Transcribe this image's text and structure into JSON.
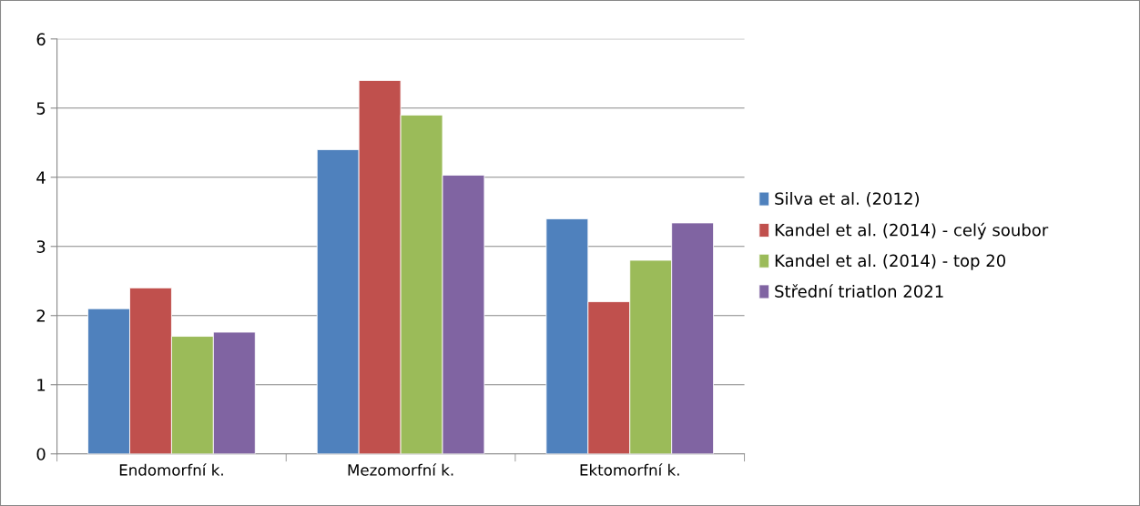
{
  "chart_data": {
    "type": "bar",
    "categories": [
      "Endomorfní k.",
      "Mezomorfní k.",
      "Ektomorfní k."
    ],
    "series": [
      {
        "name": "Silva et al. (2012)",
        "color": "#4f81bd",
        "values": [
          2.1,
          4.4,
          3.4
        ]
      },
      {
        "name": "Kandel et al. (2014) - celý soubor",
        "color": "#c0504d",
        "values": [
          2.4,
          5.4,
          2.2
        ]
      },
      {
        "name": "Kandel et al. (2014) - top 20",
        "color": "#9bbb59",
        "values": [
          1.7,
          4.9,
          2.8
        ]
      },
      {
        "name": "Střední triatlon 2021",
        "color": "#8064a2",
        "values": [
          1.76,
          4.03,
          3.34
        ]
      }
    ],
    "ylim": [
      0,
      6
    ],
    "yticks": [
      0,
      1,
      2,
      3,
      4,
      5,
      6
    ],
    "grid": "y",
    "legend": "right"
  }
}
